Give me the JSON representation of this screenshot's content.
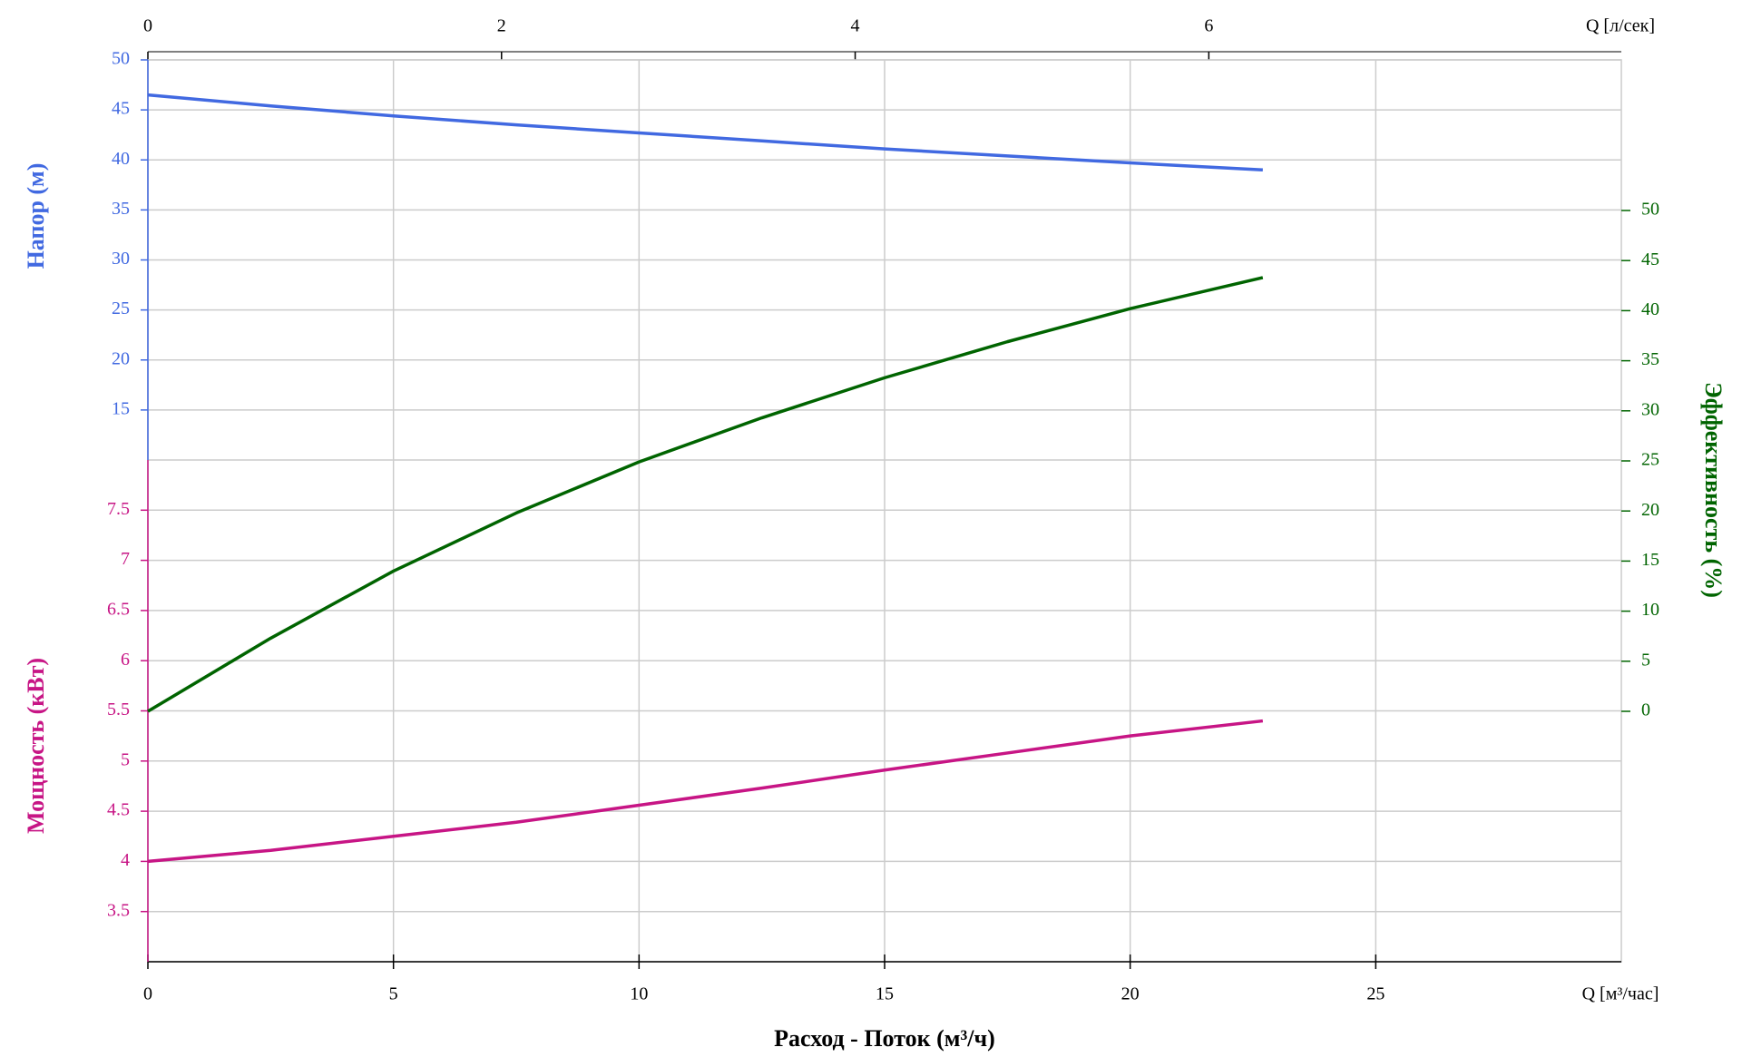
{
  "chart_data": {
    "type": "line",
    "x_label": "Расход - Поток (м³/ч)",
    "x_unit_label": "Q [м³/час]",
    "x2_unit_label": "Q [л/сек]",
    "y_label": "Напор (м)",
    "y2_label": "Эффективность (%)",
    "y3_label": "Мощность (кВт)",
    "x": [
      0,
      2.5,
      5,
      7.5,
      10,
      12.5,
      15,
      17.5,
      20,
      22.7
    ],
    "xlim": [
      0,
      30
    ],
    "xticks": [
      0,
      5,
      10,
      15,
      20,
      25
    ],
    "x2lim": [
      0,
      8.333
    ],
    "x2ticks": [
      0,
      2,
      4,
      6
    ],
    "ylim": [
      10,
      50
    ],
    "yticks": [
      15,
      20,
      25,
      30,
      35,
      40,
      45,
      50
    ],
    "y_color": "#4169e1",
    "y2lim": [
      0,
      50
    ],
    "y2ticks": [
      0,
      5,
      10,
      15,
      20,
      25,
      30,
      35,
      40,
      45,
      50
    ],
    "y2_color": "#006400",
    "y3lim": [
      3,
      8
    ],
    "y3ticks": [
      3.5,
      4,
      4.5,
      5,
      5.5,
      6,
      6.5,
      7,
      7.5
    ],
    "y3_color": "#c71585",
    "grid": true,
    "series": [
      {
        "name": "Напор",
        "color": "#4169e1",
        "axis": "y",
        "values": [
          46.5,
          45.4,
          44.4,
          43.5,
          42.7,
          41.9,
          41.1,
          40.4,
          39.7,
          39.0
        ]
      },
      {
        "name": "Эффективность",
        "color": "#006400",
        "axis": "y2",
        "values": [
          0,
          7.3,
          14,
          19.8,
          24.9,
          29.3,
          33.3,
          36.9,
          40.2,
          43.3
        ]
      },
      {
        "name": "Мощность",
        "color": "#c71585",
        "axis": "y3",
        "values": [
          4.0,
          4.11,
          4.25,
          4.39,
          4.56,
          4.73,
          4.91,
          5.08,
          5.25,
          5.4
        ]
      }
    ]
  }
}
